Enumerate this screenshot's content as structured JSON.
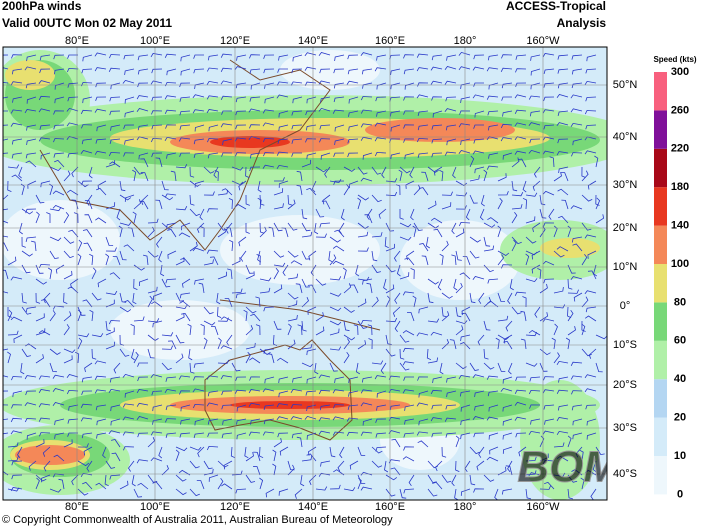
{
  "header": {
    "title": "200hPa winds",
    "valid": "Valid 00UTC Mon 02 May 2011",
    "model": "ACCESS-Tropical",
    "product": "Analysis"
  },
  "map": {
    "longitudes": [
      "80°E",
      "100°E",
      "120°E",
      "140°E",
      "160°E",
      "180°",
      "160°W"
    ],
    "latitudes": [
      "50°N",
      "40°N",
      "30°N",
      "20°N",
      "10°N",
      "0°",
      "10°S",
      "20°S",
      "30°S",
      "40°S"
    ],
    "watermark": "BOM"
  },
  "legend": {
    "title": "Speed (kts)",
    "levels": [
      0,
      10,
      20,
      40,
      60,
      80,
      100,
      140,
      180,
      220,
      260,
      300
    ],
    "colors": [
      "#eef7fc",
      "#d4ebf9",
      "#b4d6f2",
      "#b0f0a8",
      "#78d878",
      "#e8e070",
      "#f48858",
      "#e83820",
      "#a80818",
      "#80109a",
      "#f8607e"
    ]
  },
  "footer": {
    "copyright": "© Copyright Commonwealth of Australia 2011, Australian Bureau of Meteorology"
  }
}
